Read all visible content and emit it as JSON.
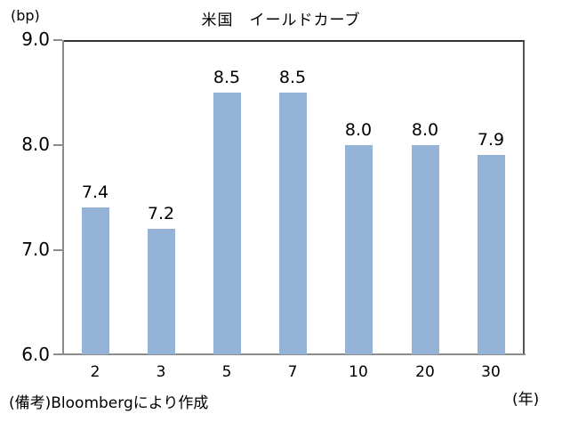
{
  "chart_data": {
    "type": "bar",
    "title": "米国　イールドカーブ",
    "ylabel": "(bp)",
    "xlabel": "(年)",
    "categories": [
      "2",
      "3",
      "5",
      "7",
      "10",
      "20",
      "30"
    ],
    "values": [
      7.4,
      7.2,
      8.5,
      8.5,
      8.0,
      8.0,
      7.9
    ],
    "value_labels": [
      "7.4",
      "7.2",
      "8.5",
      "8.5",
      "8.0",
      "8.0",
      "7.9"
    ],
    "ylim": [
      6.0,
      9.0
    ],
    "yticks": [
      "9.0",
      "8.0",
      "7.0",
      "6.0"
    ],
    "grid": false,
    "legend": null,
    "bar_color": "#95b3d7",
    "note": "(備考)Bloombergにより作成"
  }
}
